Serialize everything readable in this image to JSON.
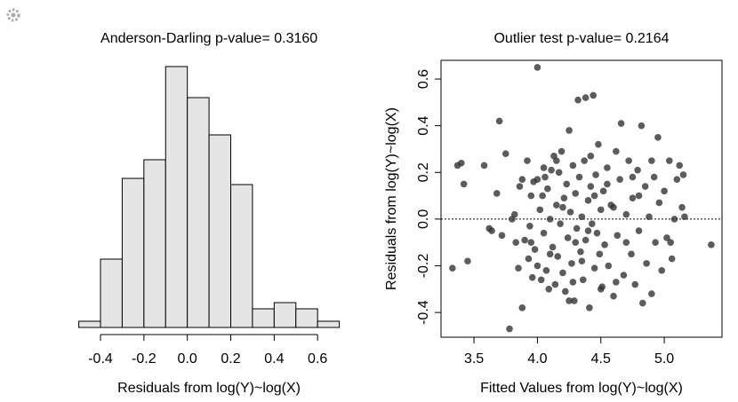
{
  "chart_data": [
    {
      "type": "histogram",
      "title": "Anderson-Darling p-value= 0.3160",
      "xlabel": "Residuals from log(Y)~log(X)",
      "bins": [
        -0.5,
        -0.4,
        -0.3,
        -0.2,
        -0.1,
        0,
        0.1,
        0.2,
        0.3,
        0.4,
        0.5,
        0.6,
        0.7
      ],
      "values": [
        1,
        11,
        24,
        27,
        42,
        37,
        31,
        23,
        3,
        4,
        3,
        1
      ],
      "color": "#e5e5e5",
      "xlim": [
        -0.5,
        0.7
      ],
      "ylim": [
        0,
        44
      ],
      "xticks": [
        -0.4,
        -0.2,
        {
          "value": 0,
          "label": "0.0"
        },
        0.2,
        0.4,
        0.6
      ]
    },
    {
      "type": "scatter",
      "title": "Outlier test p-value= 0.2164",
      "xlabel": "Fitted Values from log(Y)~log(X)",
      "ylabel": "Residuals from log(Y)~log(X)",
      "color": "#333333",
      "reference_line": 0,
      "xlim": [
        3.24,
        5.455
      ],
      "ylim": [
        -0.506,
        0.68
      ],
      "xticks": [
        3.5,
        {
          "value": 4,
          "label": "4.0"
        },
        4.5,
        {
          "value": 5,
          "label": "5.0"
        }
      ],
      "yticks": [
        -0.4,
        -0.2,
        {
          "value": 0,
          "label": "0.0"
        },
        0.2,
        0.4,
        0.6
      ],
      "x": [
        3.33,
        3.37,
        3.4,
        3.42,
        3.45,
        3.58,
        3.62,
        3.64,
        3.68,
        3.7,
        3.72,
        3.75,
        3.78,
        3.8,
        3.82,
        3.83,
        3.85,
        3.86,
        3.88,
        3.88,
        3.9,
        3.92,
        3.93,
        3.94,
        3.95,
        3.96,
        3.97,
        3.98,
        4.0,
        4.0,
        4.0,
        4.02,
        4.03,
        4.04,
        4.05,
        4.06,
        4.07,
        4.08,
        4.09,
        4.1,
        4.11,
        4.12,
        4.13,
        4.14,
        4.15,
        4.16,
        4.17,
        4.18,
        4.19,
        4.2,
        4.21,
        4.22,
        4.23,
        4.24,
        4.25,
        4.26,
        4.27,
        4.28,
        4.29,
        4.3,
        4.31,
        4.32,
        4.33,
        4.34,
        4.35,
        4.36,
        4.37,
        4.38,
        4.38,
        4.4,
        4.41,
        4.42,
        4.43,
        4.44,
        4.45,
        4.46,
        4.47,
        4.48,
        4.49,
        4.5,
        4.51,
        4.52,
        4.53,
        4.55,
        4.56,
        4.58,
        4.6,
        4.62,
        4.63,
        4.65,
        4.66,
        4.68,
        4.7,
        4.72,
        4.74,
        4.75,
        4.77,
        4.79,
        4.8,
        4.82,
        4.83,
        4.85,
        4.86,
        4.88,
        4.9,
        4.92,
        4.93,
        4.95,
        4.96,
        4.98,
        5.0,
        5.02,
        5.04,
        5.06,
        5.08,
        5.1,
        5.12,
        5.14,
        5.15,
        5.16,
        5.37,
        4.3,
        4.2,
        4.4,
        4.5,
        4.25,
        4.15,
        4.45,
        4.35,
        4.55,
        4.05,
        3.95,
        4.1,
        4.6,
        4.7,
        4.8,
        4.9,
        5.05,
        4.28,
        4.42,
        4.62,
        4.75
      ],
      "y": [
        -0.21,
        0.23,
        0.24,
        0.15,
        -0.18,
        0.23,
        -0.04,
        -0.05,
        0.11,
        0.42,
        -0.07,
        0.28,
        -0.47,
        0.0,
        0.02,
        -0.1,
        -0.21,
        0.14,
        -0.38,
        0.17,
        -0.09,
        0.25,
        -0.17,
        -0.03,
        0.1,
        -0.25,
        0.16,
        -0.13,
        0.65,
        0.17,
        -0.2,
        0.04,
        -0.26,
        0.1,
        -0.06,
        0.18,
        -0.22,
        0.13,
        -0.3,
        0.0,
        0.21,
        -0.12,
        0.27,
        -0.28,
        0.06,
        -0.16,
        0.2,
        -0.02,
        0.29,
        -0.23,
        0.09,
        -0.31,
        0.15,
        -0.08,
        0.38,
        0.03,
        -0.19,
        0.23,
        -0.35,
        0.11,
        -0.04,
        0.51,
        0.18,
        -0.14,
        0.01,
        -0.26,
        0.25,
        0.52,
        -0.09,
        0.08,
        -0.38,
        0.14,
        -0.02,
        0.53,
        -0.21,
        0.19,
        -0.06,
        0.32,
        -0.15,
        0.04,
        -0.29,
        0.12,
        -0.11,
        0.22,
        -0.2,
        0.06,
        -0.33,
        0.29,
        -0.07,
        0.17,
        0.41,
        -0.24,
        0.02,
        0.25,
        -0.15,
        0.09,
        -0.28,
        0.21,
        -0.05,
        0.4,
        -0.36,
        0.14,
        -0.19,
        0.01,
        -0.32,
        0.18,
        -0.1,
        0.35,
        0.07,
        -0.22,
        0.12,
        -0.08,
        0.25,
        -0.17,
        0.0,
        0.17,
        0.23,
        0.05,
        0.19,
        0.01,
        -0.11,
        -0.1,
        0.05,
        -0.05,
        -0.3,
        -0.35,
        0.25,
        0.1,
        -0.18,
        0.15,
        0.22,
        -0.1,
        -0.15,
        0.05,
        -0.1,
        0.1,
        0.25,
        -0.1,
        -0.27,
        0.27,
        -0.27,
        0.18
      ]
    }
  ]
}
